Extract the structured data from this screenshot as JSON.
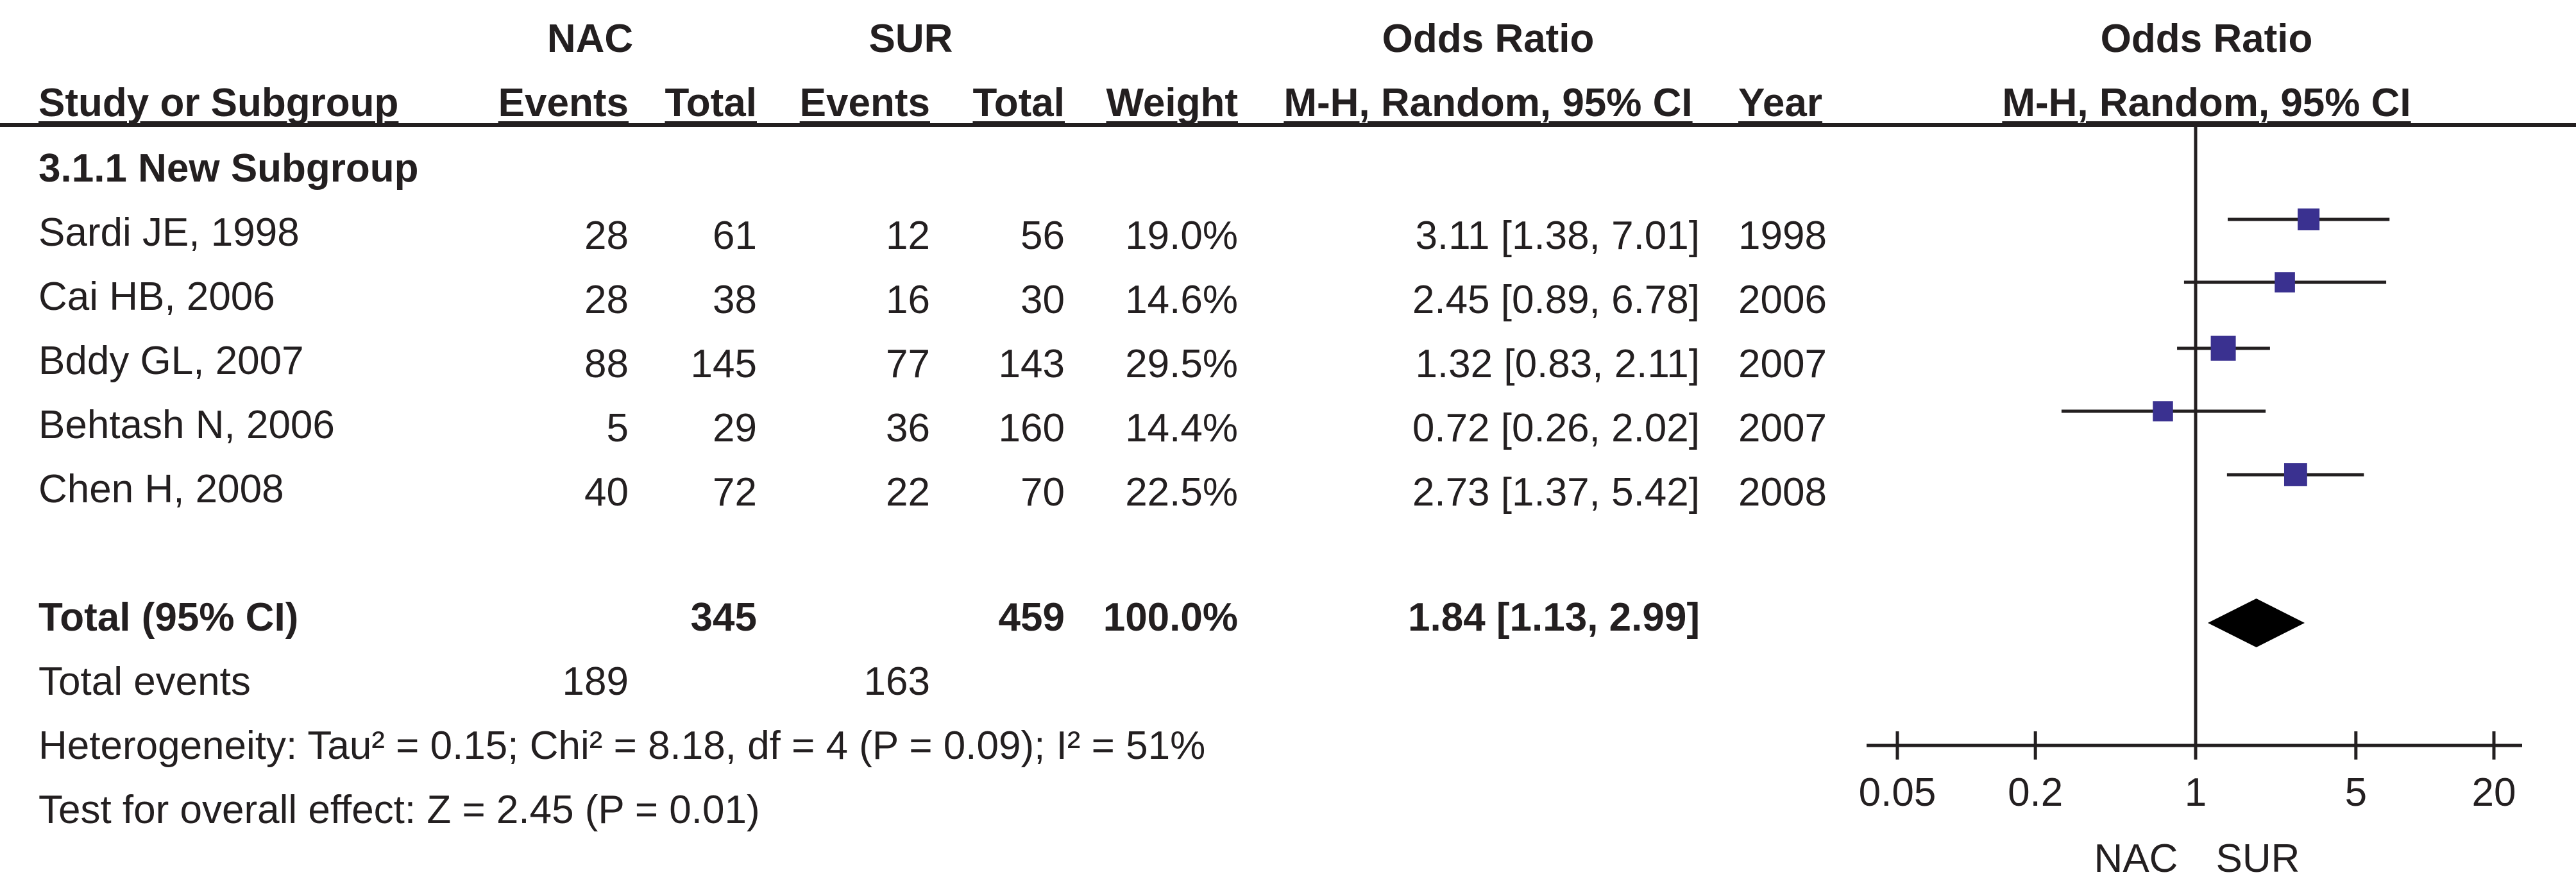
{
  "header": {
    "group1": "NAC",
    "group2": "SUR",
    "or_table": "Odds Ratio",
    "or_plot": "Odds Ratio",
    "study_col": "Study or Subgroup",
    "events1": "Events",
    "total1": "Total",
    "events2": "Events",
    "total2": "Total",
    "weight": "Weight",
    "method_table": "M-H, Random, 95% CI",
    "year": "Year",
    "method_plot": "M-H, Random, 95% CI"
  },
  "subgroup_title": "3.1.1 New Subgroup",
  "studies": [
    {
      "name": "Sardi JE, 1998",
      "events1": "28",
      "total1": "61",
      "events2": "12",
      "total2": "56",
      "weight": "19.0%",
      "ci_text": "3.11 [1.38, 7.01]",
      "year": "1998"
    },
    {
      "name": "Cai HB, 2006",
      "events1": "28",
      "total1": "38",
      "events2": "16",
      "total2": "30",
      "weight": "14.6%",
      "ci_text": "2.45 [0.89, 6.78]",
      "year": "2006"
    },
    {
      "name": "Bddy GL, 2007",
      "events1": "88",
      "total1": "145",
      "events2": "77",
      "total2": "143",
      "weight": "29.5%",
      "ci_text": "1.32 [0.83, 2.11]",
      "year": "2007"
    },
    {
      "name": "Behtash N, 2006",
      "events1": "5",
      "total1": "29",
      "events2": "36",
      "total2": "160",
      "weight": "14.4%",
      "ci_text": "0.72 [0.26, 2.02]",
      "year": "2007"
    },
    {
      "name": "Chen H, 2008",
      "events1": "40",
      "total1": "72",
      "events2": "22",
      "total2": "70",
      "weight": "22.5%",
      "ci_text": "2.73 [1.37, 5.42]",
      "year": "2008"
    }
  ],
  "total": {
    "label": "Total (95% CI)",
    "total1": "345",
    "total2": "459",
    "weight": "100.0%",
    "ci_text": "1.84 [1.13, 2.99]"
  },
  "total_events": {
    "label": "Total events",
    "events1": "189",
    "events2": "163"
  },
  "heterogeneity": "Heterogeneity: Tau² = 0.15; Chi² = 8.18, df = 4 (P = 0.09); I² = 51%",
  "overall_effect": "Test for overall effect: Z = 2.45 (P = 0.01)",
  "axis": {
    "favours_left": "NAC",
    "favours_right": "SUR"
  },
  "chart_data": {
    "type": "forest",
    "scale": "log",
    "xlim": [
      0.05,
      20
    ],
    "x_ticks": [
      0.05,
      0.2,
      1,
      5,
      20
    ],
    "x_tick_labels": [
      "0.05",
      "0.2",
      "1",
      "5",
      "20"
    ],
    "reference_line": 1,
    "studies": [
      {
        "name": "Sardi JE, 1998",
        "or": 3.11,
        "lower": 1.38,
        "upper": 7.01,
        "weight": 19.0
      },
      {
        "name": "Cai HB, 2006",
        "or": 2.45,
        "lower": 0.89,
        "upper": 6.78,
        "weight": 14.6
      },
      {
        "name": "Bddy GL, 2007",
        "or": 1.32,
        "lower": 0.83,
        "upper": 2.11,
        "weight": 29.5
      },
      {
        "name": "Behtash N, 2006",
        "or": 0.72,
        "lower": 0.26,
        "upper": 2.02,
        "weight": 14.4
      },
      {
        "name": "Chen H, 2008",
        "or": 2.73,
        "lower": 1.37,
        "upper": 5.42,
        "weight": 22.5
      }
    ],
    "pooled": {
      "or": 1.84,
      "lower": 1.13,
      "upper": 2.99
    },
    "colors": {
      "square": "#3a3190",
      "line": "#231f20",
      "diamond": "#000000"
    }
  }
}
